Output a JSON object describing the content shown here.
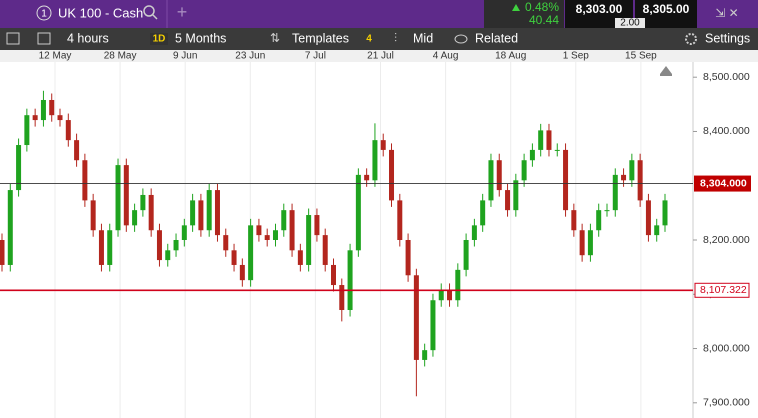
{
  "header": {
    "tab_number": "1",
    "instrument": "UK 100 - Cash",
    "change_pct": "0.48%",
    "change": "40.44",
    "sell": "8,303.00",
    "spread": "2.00",
    "buy": "8,305.00"
  },
  "toolbar": {
    "interval": "4 hours",
    "period_badge": "1D",
    "period": "5 Months",
    "templates": "Templates",
    "templates_count": "4",
    "price_type": "Mid",
    "related": "Related",
    "settings": "Settings"
  },
  "chart": {
    "type": "candlestick",
    "dates": [
      "12 May",
      "28 May",
      "9 Jun",
      "23 Jun",
      "7 Jul",
      "21 Jul",
      "4 Aug",
      "18 Aug",
      "1 Sep",
      "15 Sep"
    ],
    "up_color": "#1fa31f",
    "down_color": "#b3261e",
    "open": [
      8200,
      8154,
      8292,
      8375,
      8430,
      8421,
      8458,
      8430,
      8421,
      8384,
      8347,
      8273,
      8218,
      8154,
      8218,
      8338,
      8227,
      8255,
      8283,
      8218,
      8163,
      8181,
      8200,
      8227,
      8273,
      8218,
      8292,
      8209,
      8181,
      8154,
      8126,
      8227,
      8209,
      8200,
      8218,
      8255,
      8181,
      8154,
      8246,
      8209,
      8154,
      8117,
      8071,
      8181,
      8320,
      8310,
      8384,
      8366,
      8273,
      8200,
      8135,
      7979,
      7997,
      8089,
      8108,
      8089,
      8145,
      8200,
      8227,
      8273,
      8347,
      8292,
      8255,
      8310,
      8347,
      8366,
      8402,
      8366,
      8366,
      8255,
      8218,
      8172,
      8218,
      8255,
      8255,
      8320,
      8310,
      8347,
      8273,
      8209,
      8227
    ],
    "high": [
      8212,
      8304,
      8387,
      8442,
      8442,
      8475,
      8470,
      8442,
      8433,
      8396,
      8359,
      8285,
      8230,
      8230,
      8350,
      8350,
      8267,
      8295,
      8295,
      8230,
      8193,
      8212,
      8239,
      8285,
      8285,
      8304,
      8304,
      8221,
      8193,
      8166,
      8239,
      8239,
      8221,
      8230,
      8267,
      8267,
      8193,
      8258,
      8258,
      8221,
      8166,
      8129,
      8193,
      8332,
      8332,
      8415,
      8396,
      8378,
      8285,
      8212,
      8147,
      8009,
      8101,
      8120,
      8120,
      8157,
      8212,
      8239,
      8285,
      8359,
      8359,
      8304,
      8322,
      8359,
      8378,
      8414,
      8414,
      8378,
      8378,
      8267,
      8230,
      8230,
      8267,
      8267,
      8332,
      8332,
      8359,
      8359,
      8285,
      8239,
      8285
    ],
    "low": [
      8142,
      8142,
      8280,
      8363,
      8409,
      8409,
      8418,
      8409,
      8372,
      8335,
      8261,
      8206,
      8142,
      8142,
      8206,
      8215,
      8215,
      8243,
      8206,
      8151,
      8151,
      8169,
      8188,
      8215,
      8206,
      8206,
      8197,
      8169,
      8142,
      8114,
      8114,
      8197,
      8188,
      8188,
      8206,
      8169,
      8142,
      8142,
      8197,
      8142,
      8105,
      8050,
      8059,
      8169,
      8298,
      8298,
      8354,
      8261,
      8188,
      8123,
      7912,
      7967,
      7985,
      8077,
      8077,
      8077,
      8133,
      8188,
      8215,
      8261,
      8280,
      8243,
      8243,
      8298,
      8335,
      8354,
      8354,
      8354,
      8243,
      8206,
      8160,
      8160,
      8206,
      8243,
      8243,
      8298,
      8298,
      8261,
      8197,
      8197,
      8215
    ],
    "close": [
      8154,
      8292,
      8375,
      8430,
      8421,
      8458,
      8430,
      8421,
      8384,
      8347,
      8273,
      8218,
      8154,
      8218,
      8338,
      8227,
      8255,
      8283,
      8218,
      8163,
      8181,
      8200,
      8227,
      8273,
      8218,
      8292,
      8209,
      8181,
      8154,
      8126,
      8227,
      8209,
      8200,
      8218,
      8255,
      8181,
      8154,
      8246,
      8209,
      8154,
      8117,
      8071,
      8181,
      8320,
      8310,
      8384,
      8366,
      8273,
      8200,
      8135,
      7979,
      7997,
      8089,
      8108,
      8089,
      8145,
      8200,
      8227,
      8273,
      8347,
      8292,
      8255,
      8310,
      8347,
      8366,
      8402,
      8366,
      8366,
      8255,
      8218,
      8172,
      8218,
      8255,
      8255,
      8320,
      8310,
      8347,
      8273,
      8209,
      8227,
      8273
    ],
    "ylim": [
      7872,
      8528
    ],
    "yticks": [
      {
        "value": 7900,
        "label": "7,900.000"
      },
      {
        "value": 8000,
        "label": "8,000.000"
      },
      {
        "value": 8100,
        "label": "8,100.000"
      },
      {
        "value": 8200,
        "label": "8,200.000"
      },
      {
        "value": 8400,
        "label": "8,400.000"
      },
      {
        "value": 8500,
        "label": "8,500.000"
      }
    ],
    "current_price": {
      "value": 8304,
      "label": "8,304.000"
    },
    "level_line": {
      "value": 8107.322,
      "label": "8,107.322",
      "color": "#d0021b"
    }
  }
}
